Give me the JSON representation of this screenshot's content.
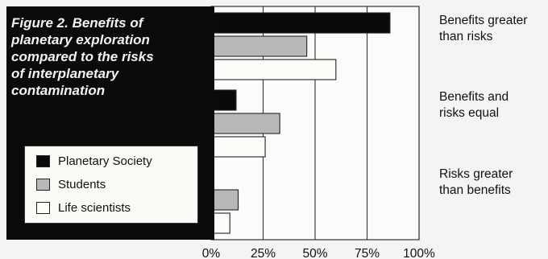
{
  "colors": {
    "planetary_society": "#0a0a0a",
    "students": "#b8b8b8",
    "life_scientists": "#fbfbf8",
    "title_box": "#0b0b0b",
    "background": "#f4f4f2"
  },
  "chart_data": {
    "type": "bar",
    "orientation": "horizontal",
    "title_lines": [
      "Figure 2. Benefits of",
      "planetary exploration",
      "compared to the risks",
      "of interplanetary",
      "contamination"
    ],
    "categories": [
      {
        "lines": [
          "Benefits greater",
          "than risks"
        ]
      },
      {
        "lines": [
          "Benefits and",
          "risks equal"
        ]
      },
      {
        "lines": [
          "Risks greater",
          "than benefits"
        ]
      }
    ],
    "series": [
      {
        "name": "Planetary Society",
        "color": "#0a0a0a",
        "values": [
          86,
          12,
          0
        ]
      },
      {
        "name": "Students",
        "color": "#b8b8b8",
        "values": [
          46,
          33,
          13
        ]
      },
      {
        "name": "Life scientists",
        "color": "#fbfbf8",
        "values": [
          60,
          26,
          9
        ]
      }
    ],
    "xlim": [
      0,
      100
    ],
    "x_ticks": [
      "0%",
      "25%",
      "50%",
      "75%",
      "100%"
    ],
    "grid": "vertical",
    "legend_placement": "bottom-left"
  }
}
